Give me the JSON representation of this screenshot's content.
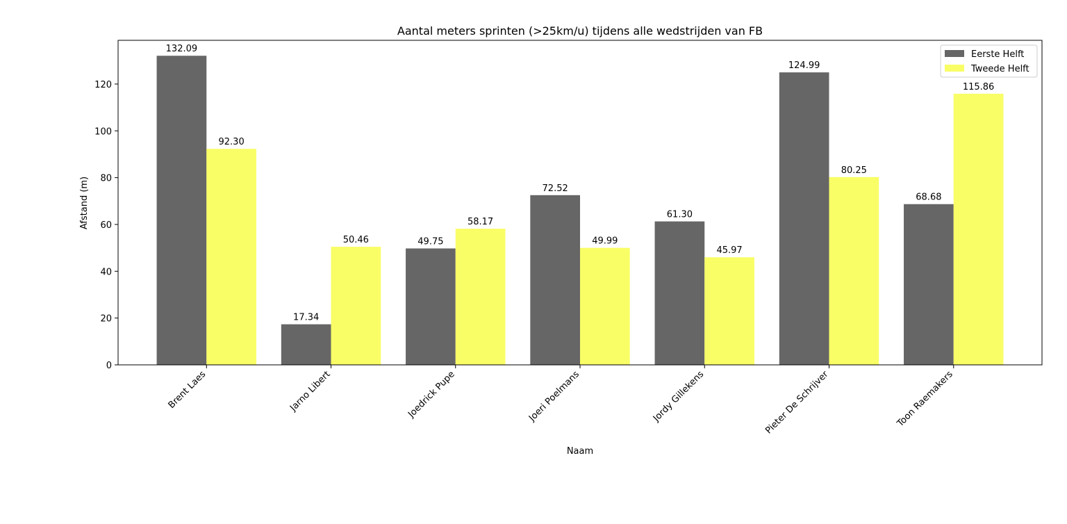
{
  "chart_data": {
    "type": "bar",
    "title": "Aantal meters sprinten (>25km/u) tijdens alle wedstrijden van FB",
    "xlabel": "Naam",
    "ylabel": "Afstand (m)",
    "ylim": [
      0,
      138.69
    ],
    "yticks": [
      0,
      20,
      40,
      60,
      80,
      100,
      120
    ],
    "grid": false,
    "legend_position": "top-right",
    "categories": [
      "Brent Laes",
      "Jarno Libert",
      "Joedrick Pupe",
      "Joeri Poelmans",
      "Jordy Gillekens",
      "Pieter De Schrijver",
      "Toon Raemakers"
    ],
    "series": [
      {
        "name": "Eerste Helft",
        "color": "#666666",
        "values": [
          132.09,
          17.34,
          49.75,
          72.52,
          61.3,
          124.99,
          68.68
        ],
        "labels": [
          "132.09",
          "17.34",
          "49.75",
          "72.52",
          "61.30",
          "124.99",
          "68.68"
        ]
      },
      {
        "name": "Tweede Helft",
        "color": "#f9fe66",
        "values": [
          92.3,
          50.46,
          58.17,
          49.99,
          45.97,
          80.25,
          115.86
        ],
        "labels": [
          "92.30",
          "50.46",
          "58.17",
          "49.99",
          "45.97",
          "80.25",
          "115.86"
        ]
      }
    ]
  }
}
